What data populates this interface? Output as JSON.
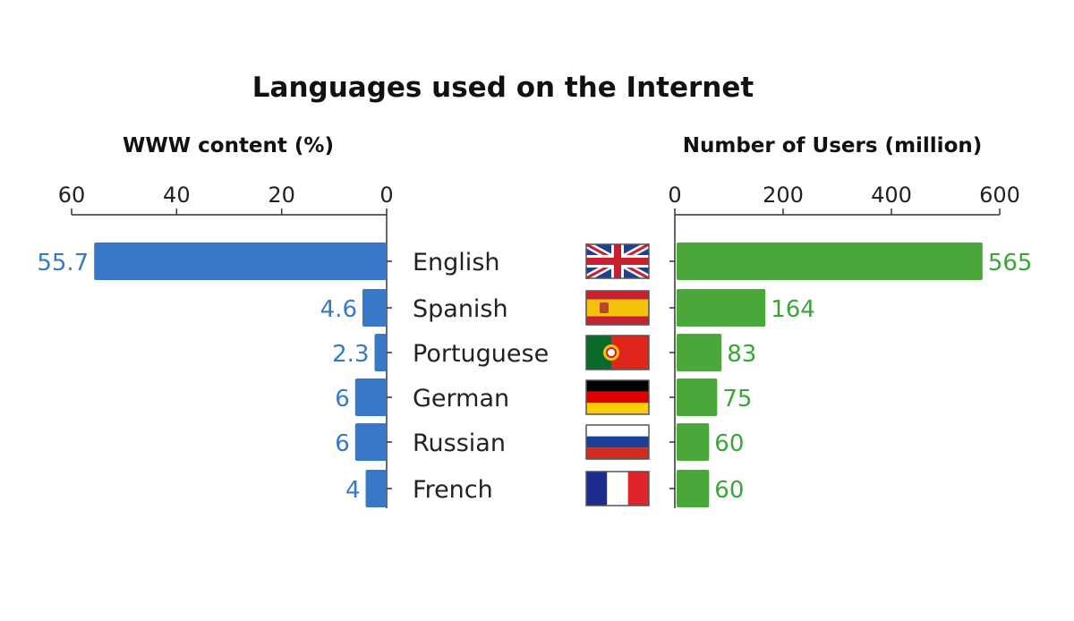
{
  "chart_data": {
    "type": "bar",
    "title": "Languages used on the Internet",
    "categories": [
      "English",
      "Spanish",
      "Portuguese",
      "German",
      "Russian",
      "French"
    ],
    "left": {
      "title": "WWW content (%)",
      "ticks": [
        60,
        40,
        20,
        0
      ],
      "xlim": [
        0,
        60
      ],
      "values": [
        55.7,
        4.6,
        2.3,
        6,
        6,
        4
      ],
      "labels": [
        "55.7",
        "4.6",
        "2.3",
        "6",
        "6",
        "4"
      ],
      "color": "#3878c8"
    },
    "right": {
      "title": "Number of Users (million)",
      "ticks": [
        0,
        200,
        400,
        600
      ],
      "xlim": [
        0,
        600
      ],
      "values": [
        565,
        164,
        83,
        75,
        60,
        60
      ],
      "labels": [
        "565",
        "164",
        "83",
        "75",
        "60",
        "60"
      ],
      "color": "#4aa83a"
    },
    "flags": [
      "uk-flag-icon",
      "spain-flag-icon",
      "portugal-flag-icon",
      "germany-flag-icon",
      "russia-flag-icon",
      "france-flag-icon"
    ]
  }
}
